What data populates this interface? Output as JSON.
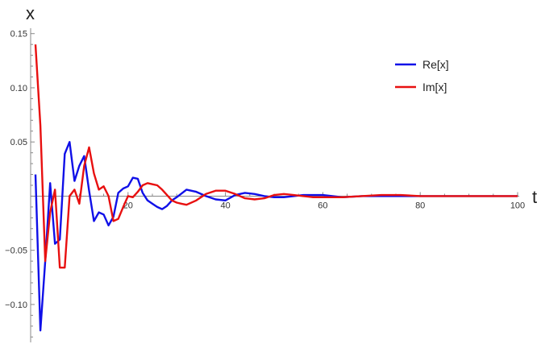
{
  "chart_data": {
    "type": "line",
    "title": "",
    "xlabel": "t",
    "ylabel": "x",
    "xlim": [
      0,
      100
    ],
    "ylim": [
      -0.135,
      0.155
    ],
    "xticks": [
      20,
      40,
      60,
      80,
      100
    ],
    "xtick_labels": [
      "20",
      "40",
      "60",
      "80",
      "100"
    ],
    "yticks": [
      0.15,
      0.1,
      0.05,
      -0.05,
      -0.1
    ],
    "ytick_labels": [
      "0.15",
      "0.10",
      "0.05",
      "−0.05",
      "−0.10"
    ],
    "grid": false,
    "legend_position": "top-right",
    "series": [
      {
        "name": "Re[x]",
        "color": "#1010e8",
        "x": [
          1,
          2,
          3,
          4,
          5,
          6,
          7,
          8,
          9,
          10,
          11,
          12,
          13,
          14,
          15,
          16,
          17,
          18,
          19,
          20,
          21,
          22,
          23,
          24,
          25,
          26,
          27,
          28,
          29,
          30,
          32,
          34,
          36,
          38,
          40,
          42,
          44,
          46,
          48,
          50,
          52,
          54,
          56,
          58,
          60,
          64,
          68,
          72,
          76,
          80,
          85,
          90,
          95,
          100
        ],
        "y": [
          0.02,
          -0.124,
          -0.06,
          0.012,
          -0.044,
          -0.04,
          0.039,
          0.05,
          0.014,
          0.028,
          0.037,
          0.005,
          -0.023,
          -0.015,
          -0.017,
          -0.027,
          -0.019,
          0.003,
          0.007,
          0.009,
          0.017,
          0.016,
          0.003,
          -0.004,
          -0.007,
          -0.01,
          -0.012,
          -0.009,
          -0.004,
          -0.001,
          0.006,
          0.004,
          0.0,
          -0.003,
          -0.004,
          0.001,
          0.003,
          0.002,
          0.0,
          -0.001,
          -0.001,
          0.0,
          0.001,
          0.001,
          0.001,
          -0.001,
          0.0,
          0.0,
          0.0,
          0.0,
          0.0,
          0.0,
          0.0,
          0.0
        ]
      },
      {
        "name": "Im[x]",
        "color": "#e81010",
        "x": [
          1,
          2,
          3,
          4,
          5,
          6,
          7,
          8,
          9,
          10,
          11,
          12,
          13,
          14,
          15,
          16,
          17,
          18,
          19,
          20,
          21,
          22,
          23,
          24,
          25,
          26,
          27,
          28,
          29,
          30,
          31,
          32,
          34,
          36,
          38,
          40,
          42,
          44,
          46,
          48,
          50,
          52,
          54,
          56,
          58,
          60,
          64,
          68,
          72,
          76,
          80,
          85,
          90,
          95,
          100
        ],
        "y": [
          0.14,
          0.065,
          -0.06,
          -0.015,
          0.006,
          -0.066,
          -0.066,
          0.0,
          0.006,
          -0.007,
          0.028,
          0.045,
          0.021,
          0.006,
          0.009,
          0.0,
          -0.023,
          -0.021,
          -0.01,
          0.0,
          -0.001,
          0.004,
          0.01,
          0.012,
          0.011,
          0.01,
          0.006,
          0.001,
          -0.004,
          -0.006,
          -0.007,
          -0.008,
          -0.004,
          0.002,
          0.005,
          0.005,
          0.002,
          -0.002,
          -0.003,
          -0.002,
          0.001,
          0.002,
          0.001,
          0.0,
          -0.001,
          -0.001,
          -0.001,
          0.0,
          0.001,
          0.001,
          0.0,
          0.0,
          0.0,
          0.0,
          0.0
        ]
      }
    ]
  }
}
